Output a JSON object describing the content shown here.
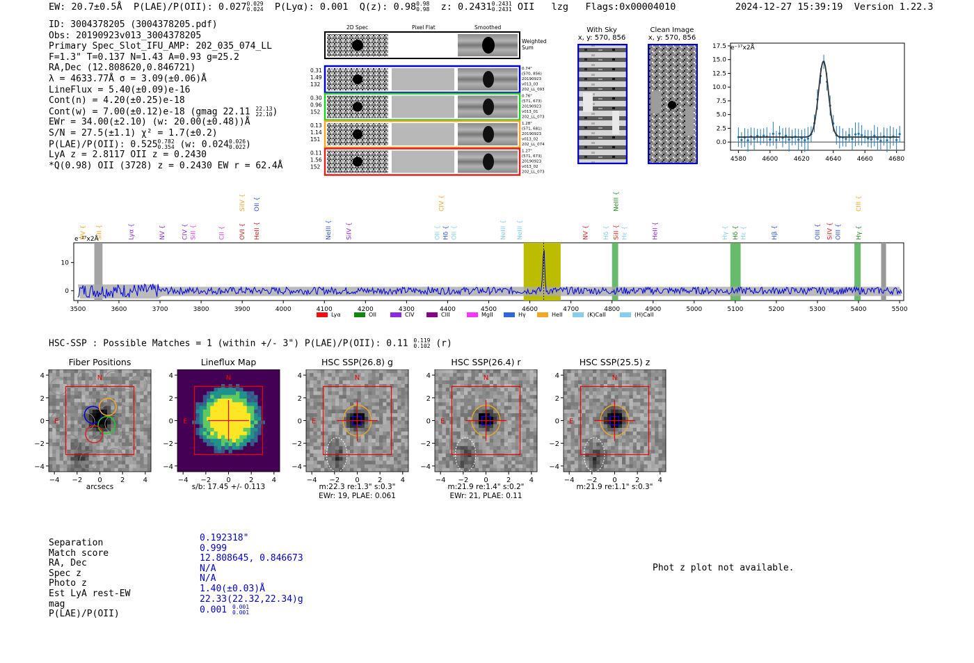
{
  "header": {
    "ew": "EW: 20.7±0.5Å",
    "plae_label": "P(LAE)/P(OII): 0.027",
    "plae_hi": "0.029",
    "plae_lo": "0.024",
    "plya": "P(Lyα): 0.001",
    "qz_label": "Q(z): 0.98",
    "qz_hi": "0.98",
    "qz_lo": "0.98",
    "z_label": "z: 0.2431",
    "z_hi": "0.2431",
    "z_lo": "0.2431",
    "z_line": "OII",
    "lzg": "lzg",
    "flags": "Flags:0x00004010",
    "datetime": "2024-12-27 15:39:19",
    "version": "Version 1.22.3"
  },
  "info": {
    "id": "ID: 3004378205 (3004378205.pdf)",
    "obs": "Obs: 20190923v013_3004378205",
    "primary": "Primary Spec_Slot_IFU_AMP: 202_035_074_LL",
    "fline": "F=1.3\"  T=0.137  N=1.43  A=0.93  g=25.2",
    "radec": "RA,Dec (12.808620,0.846721)",
    "lambda": "λ = 4633.77Å  σ = 3.09(±0.06)Å",
    "lineflux": "LineFlux = 5.40(±0.09)e-16",
    "contn": "Cont(n) = 4.20(±0.25)e-18",
    "contw": "Cont(w) = 7.00(±0.12)e-18 (gmag 22.11",
    "contw_hi": "22.13",
    "contw_lo": "22.10",
    "contw_end": ")",
    "ewr": "EWr = 34.00(±2.10) (w: 20.00(±0.48))Å",
    "sn": "S/N = 27.5(±1.1)  χ² = 1.7(±0.2)",
    "plae": "P(LAE)/P(OII): 0.525",
    "plae_hi": "0.782",
    "plae_lo": "0.354",
    "plae_w": "(w: 0.024",
    "plae_w_hi": "0.026",
    "plae_w_lo": "0.022",
    "plae_end": ")",
    "lya": "LyA z = 2.8117  OII z = 0.2430",
    "q": "*Q(0.98) OII (3728) z = 0.2430  EW r = 62.4Å"
  },
  "cutouts": {
    "col_2d": "2D Spec",
    "col_flat": "Pixel Flat",
    "col_smooth": "Smoothed",
    "weighted": "Weighted",
    "sum": "Sum",
    "rows": [
      {
        "color": "#0000cc",
        "l1": "0.31",
        "l2": "1.49",
        "l3": "132",
        "r1": "0.74\"",
        "r2": "(570, 856)",
        "r3": "20190923",
        "r4": "v013_03",
        "r5": "202_LL_093"
      },
      {
        "color": "#22cc22",
        "l1": "0.30",
        "l2": "0.96",
        "l3": "152",
        "r1": "0.76\"",
        "r2": "(571, 673)",
        "r3": "20190923",
        "r4": "v013_01",
        "r5": "202_LL_073"
      },
      {
        "color": "#f5a623",
        "l1": "0.13",
        "l2": "1.14",
        "l3": "151",
        "r1": "1.28\"",
        "r2": "(571, 681)",
        "r3": "20190923",
        "r4": "v013_02",
        "r5": "202_LL_074"
      },
      {
        "color": "#dd2222",
        "l1": "0.11",
        "l2": "1.56",
        "l3": "152",
        "r1": "1.27\"",
        "r2": "(571, 673)",
        "r3": "20190923",
        "r4": "v013_02",
        "r5": "202_LL_073"
      }
    ]
  },
  "sky": {
    "with_sky": "With Sky",
    "with_sky_xy": "x, y: 570, 856",
    "clean": "Clean Image",
    "clean_xy": "x, y: 570, 856"
  },
  "zoom_plot": {
    "unit": "e⁻¹⁷x2Å",
    "yticks": [
      "17.5",
      "15.0",
      "12.5",
      "10.0",
      "7.5",
      "5.0",
      "2.5",
      "0.0"
    ],
    "xticks": [
      "4580",
      "4600",
      "4620",
      "4640",
      "4660",
      "4680"
    ]
  },
  "spectrum": {
    "unit": "e⁻¹⁷x2Å",
    "yticks": [
      "10",
      "0"
    ],
    "xticks": [
      "3500",
      "3600",
      "3700",
      "3800",
      "3900",
      "4000",
      "4100",
      "4200",
      "4300",
      "4400",
      "4500",
      "4600",
      "4700",
      "4800",
      "4900",
      "5000",
      "5100",
      "5200",
      "5300",
      "5400",
      "5500"
    ],
    "lines": [
      {
        "t": "NV",
        "c": "#f5a623",
        "w": 3512,
        "lvl": 1
      },
      {
        "t": "SiII",
        "c": "#f5a623",
        "w": 3552,
        "lvl": 1
      },
      {
        "t": "Lyα",
        "c": "#8a2be2",
        "w": 3630,
        "lvl": 1
      },
      {
        "t": "NV",
        "c": "#8a2be2",
        "w": 3705,
        "lvl": 1
      },
      {
        "t": "CIV",
        "c": "#8a2be2",
        "w": 3760,
        "lvl": 1
      },
      {
        "t": "SiII",
        "c": "#e040e0",
        "w": 3780,
        "lvl": 1
      },
      {
        "t": "CII",
        "c": "#e040e0",
        "w": 3850,
        "lvl": 1
      },
      {
        "t": "SiIV",
        "c": "#f5a623",
        "w": 3900,
        "lvl": 0
      },
      {
        "t": "OII",
        "c": "#3355dd",
        "w": 3935,
        "lvl": 0
      },
      {
        "t": "OVI",
        "c": "#dd2222",
        "w": 3900,
        "lvl": 1
      },
      {
        "t": "HeII",
        "c": "#dd2222",
        "w": 3935,
        "lvl": 1
      },
      {
        "t": "NeIII",
        "c": "#3355dd",
        "w": 4110,
        "lvl": 1
      },
      {
        "t": "SiIV",
        "c": "#8a2be2",
        "w": 4160,
        "lvl": 1
      },
      {
        "t": "CIV",
        "c": "#f5a623",
        "w": 4385,
        "lvl": 0
      },
      {
        "t": "OII",
        "c": "#87ceeb",
        "w": 4375,
        "lvl": 1
      },
      {
        "t": "Hδ",
        "c": "#3355dd",
        "w": 4395,
        "lvl": 1
      },
      {
        "t": "OII",
        "c": "#87ceeb",
        "w": 4415,
        "lvl": 1
      },
      {
        "t": "NeIII",
        "c": "#87ceeb",
        "w": 4535,
        "lvl": 1
      },
      {
        "t": "NeIII",
        "c": "#87ceeb",
        "w": 4575,
        "lvl": 1
      },
      {
        "t": "NV",
        "c": "#dd2222",
        "w": 4735,
        "lvl": 1
      },
      {
        "t": "NeIII",
        "c": "#228b22",
        "w": 4810,
        "lvl": 0
      },
      {
        "t": "Hδ",
        "c": "#87ceeb",
        "w": 4785,
        "lvl": 1
      },
      {
        "t": "SiII",
        "c": "#dd2222",
        "w": 4810,
        "lvl": 1
      },
      {
        "t": "Hε",
        "c": "#87ceeb",
        "w": 4830,
        "lvl": 1
      },
      {
        "t": "HeII",
        "c": "#8a2be2",
        "w": 4905,
        "lvl": 1
      },
      {
        "t": "Hγ",
        "c": "#87ceeb",
        "w": 5075,
        "lvl": 1
      },
      {
        "t": "Hδ",
        "c": "#228b22",
        "w": 5100,
        "lvl": 1
      },
      {
        "t": "Hε",
        "c": "#87ceeb",
        "w": 5120,
        "lvl": 1
      },
      {
        "t": "Hβ",
        "c": "#3355dd",
        "w": 5195,
        "lvl": 1
      },
      {
        "t": "OIII",
        "c": "#3355dd",
        "w": 5300,
        "lvl": 1
      },
      {
        "t": "SiIV",
        "c": "#dd2222",
        "w": 5330,
        "lvl": 1
      },
      {
        "t": "OIII",
        "c": "#3355dd",
        "w": 5350,
        "lvl": 1
      },
      {
        "t": "CIII",
        "c": "#f5a623",
        "w": 5400,
        "lvl": 0
      },
      {
        "t": "Hγ",
        "c": "#228b22",
        "w": 5400,
        "lvl": 1
      }
    ],
    "legend": [
      {
        "t": "Lyα",
        "c": "#ee1111"
      },
      {
        "t": "OII",
        "c": "#118811"
      },
      {
        "t": "CIV",
        "c": "#8a2be2"
      },
      {
        "t": "CIII",
        "c": "#880088"
      },
      {
        "t": "MgII",
        "c": "#ff33ff"
      },
      {
        "t": "Hγ",
        "c": "#3366dd"
      },
      {
        "t": "HeII",
        "c": "#f5a623"
      },
      {
        "t": "(K)CaII",
        "c": "#87ceeb"
      },
      {
        "t": "(H)CaII",
        "c": "#87ceeb"
      }
    ]
  },
  "hsc": {
    "title": "HSC-SSP : Possible Matches = 1 (within +/- 3\")  P(LAE)/P(OII): 0.11",
    "title_hi": "0.119",
    "title_lo": "0.102",
    "title_end": "(r)",
    "panels": [
      {
        "title": "Fiber Positions",
        "cap1": "arcsecs",
        "cap2": ""
      },
      {
        "title": "Lineflux Map",
        "cap1": "s/b: 17.45 +/- 0.113",
        "cap2": ""
      },
      {
        "title": "HSC SSP(26.8) g",
        "cap1": "m:22.3  re:1.3\"  s:0.3\"",
        "cap2": "EWr: 19, PLAE: 0.061"
      },
      {
        "title": "HSC SSP(26.4) r",
        "cap1": "m:21.9  re:1.4\"  s:0.2\"",
        "cap2": "EWr: 21, PLAE: 0.11"
      },
      {
        "title": "HSC SSP(25.5) z",
        "cap1": "m:21.9  re:1.1\"  s:0.3\"",
        "cap2": ""
      }
    ],
    "yticks": [
      "4",
      "2",
      "0",
      "−2",
      "−4"
    ],
    "xticks": [
      "−4",
      "−2",
      "0",
      "2",
      "4"
    ],
    "n": "N",
    "e": "E"
  },
  "match": {
    "labels": [
      "Separation",
      "Match score",
      "RA, Dec",
      "Spec z",
      "Photo z",
      "Est LyA rest-EW",
      "mag",
      "P(LAE)/P(OII)"
    ],
    "values": [
      "0.192318\"",
      "0.999",
      "12.808645, 0.846673",
      "N/A",
      "N/A",
      "1.40(±0.03)Å",
      "22.33(22.32,22.34)g",
      "0.001"
    ],
    "plae_hi": "0.001",
    "plae_lo": "0.001"
  },
  "photz": "Phot z plot not available."
}
